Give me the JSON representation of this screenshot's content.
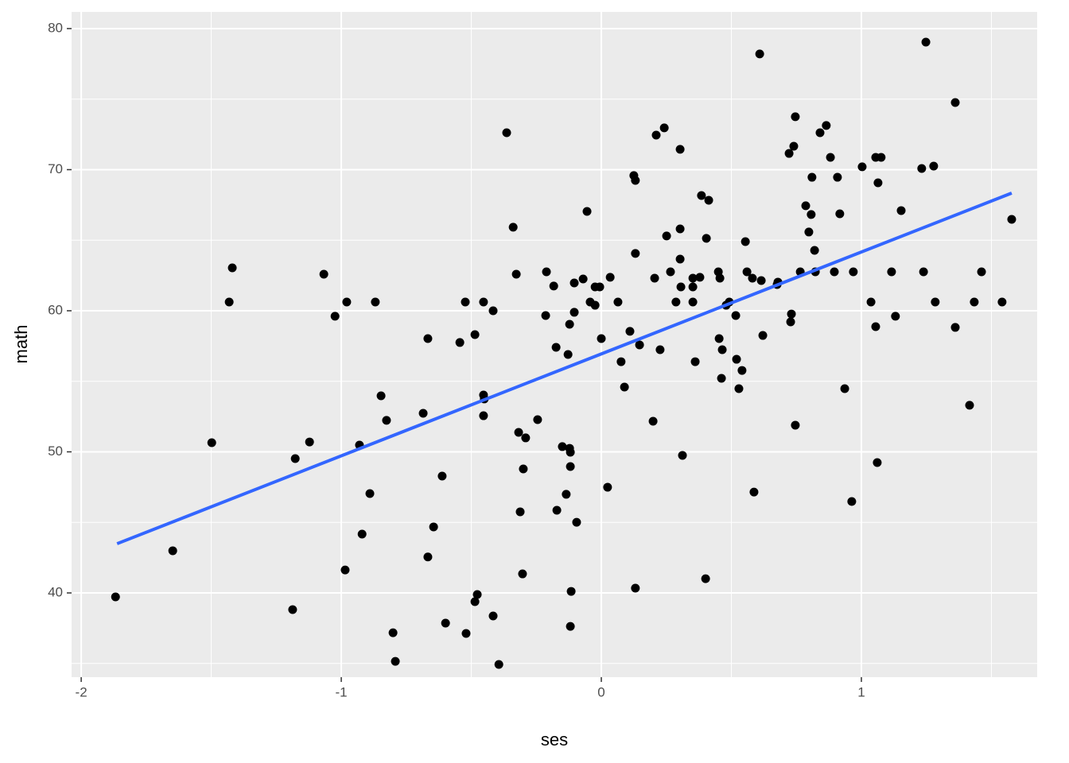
{
  "chart_data": {
    "type": "scatter",
    "x_label": "ses",
    "y_label": "math",
    "xlim": [
      -2.037,
      1.676
    ],
    "ylim": [
      34.03,
      81.18
    ],
    "xticks": [
      -2,
      -1,
      0,
      1
    ],
    "yticks": [
      40,
      50,
      60,
      70,
      80
    ],
    "x_minor_ticks": [
      -1.5,
      -0.5,
      0.5,
      1.5
    ],
    "y_minor_ticks": [
      35,
      45,
      55,
      65,
      75
    ],
    "grid": true,
    "color": "#000000",
    "x": [
      -1.868,
      -1.648,
      -1.498,
      -1.431,
      -1.419,
      -1.187,
      -1.177,
      -1.122,
      -1.067,
      -1.024,
      -0.985,
      -0.979,
      -0.93,
      -0.92,
      -0.89,
      -0.869,
      -0.847,
      -0.826,
      -0.801,
      -0.792,
      -0.685,
      -0.667,
      -0.667,
      -0.645,
      -0.612,
      -0.599,
      -0.544,
      -0.523,
      -0.52,
      -0.486,
      -0.486,
      -0.477,
      -0.453,
      -0.453,
      -0.45,
      -0.453,
      -0.416,
      -0.416,
      -0.394,
      -0.364,
      -0.339,
      -0.327,
      -0.318,
      -0.312,
      -0.303,
      -0.3,
      -0.291,
      -0.245,
      -0.214,
      -0.211,
      -0.183,
      -0.174,
      -0.171,
      -0.15,
      -0.135,
      -0.128,
      -0.122,
      -0.122,
      -0.119,
      -0.119,
      -0.116,
      -0.119,
      -0.104,
      -0.104,
      -0.095,
      -0.07,
      -0.055,
      -0.043,
      -0.024,
      -0.024,
      -0.006,
      0.0,
      0.024,
      0.034,
      0.064,
      0.076,
      0.089,
      0.11,
      0.125,
      0.131,
      0.131,
      0.131,
      0.147,
      0.199,
      0.205,
      0.211,
      0.226,
      0.242,
      0.251,
      0.266,
      0.287,
      0.303,
      0.303,
      0.303,
      0.306,
      0.312,
      0.352,
      0.352,
      0.352,
      0.361,
      0.379,
      0.385,
      0.404,
      0.401,
      0.413,
      0.45,
      0.453,
      0.456,
      0.462,
      0.465,
      0.48,
      0.492,
      0.517,
      0.52,
      0.529,
      0.541,
      0.554,
      0.56,
      0.581,
      0.587,
      0.609,
      0.615,
      0.621,
      0.676,
      0.679,
      0.722,
      0.728,
      0.731,
      0.74,
      0.746,
      0.746,
      0.765,
      0.786,
      0.798,
      0.807,
      0.81,
      0.82,
      0.823,
      0.841,
      0.865,
      0.881,
      0.896,
      0.908,
      0.917,
      0.936,
      0.963,
      0.969,
      1.003,
      1.037,
      1.055,
      1.055,
      1.061,
      1.064,
      1.076,
      1.116,
      1.131,
      1.153,
      1.232,
      1.239,
      1.248,
      1.278,
      1.284,
      1.361,
      1.361,
      1.416,
      1.434,
      1.462,
      1.541,
      1.578
    ],
    "y": [
      39.72,
      42.99,
      50.65,
      60.62,
      63.04,
      38.82,
      49.52,
      50.7,
      62.59,
      59.61,
      41.63,
      60.62,
      50.48,
      44.17,
      47.04,
      60.62,
      53.97,
      52.23,
      37.18,
      35.15,
      52.73,
      58.03,
      42.55,
      44.68,
      48.28,
      37.86,
      57.75,
      60.62,
      37.13,
      58.31,
      39.38,
      39.89,
      60.62,
      54.03,
      53.75,
      52.56,
      60.0,
      38.37,
      34.93,
      72.62,
      65.92,
      62.59,
      51.38,
      45.75,
      41.35,
      48.79,
      50.99,
      52.28,
      59.66,
      62.76,
      61.75,
      57.41,
      45.86,
      50.37,
      46.99,
      56.9,
      59.04,
      50.25,
      49.97,
      48.96,
      40.11,
      37.63,
      59.89,
      61.97,
      45.01,
      62.25,
      67.04,
      60.62,
      61.69,
      60.39,
      61.69,
      58.03,
      47.49,
      62.37,
      60.62,
      56.39,
      54.59,
      58.54,
      69.58,
      69.24,
      64.06,
      40.34,
      57.58,
      52.17,
      62.31,
      72.45,
      57.24,
      72.96,
      65.3,
      62.76,
      60.62,
      65.8,
      63.66,
      71.44,
      61.69,
      49.75,
      60.62,
      61.69,
      62.31,
      56.39,
      62.37,
      68.17,
      65.13,
      41.01,
      67.83,
      62.76,
      58.03,
      62.31,
      55.21,
      57.24,
      60.39,
      60.62,
      59.66,
      56.56,
      54.48,
      55.77,
      64.9,
      62.76,
      62.31,
      47.15,
      78.2,
      62.14,
      58.25,
      61.86,
      62.03,
      71.15,
      59.21,
      59.77,
      71.66,
      73.75,
      51.89,
      62.76,
      67.44,
      65.58,
      66.82,
      69.46,
      64.28,
      62.76,
      72.62,
      73.13,
      70.87,
      62.76,
      69.46,
      66.87,
      54.48,
      46.48,
      62.76,
      70.2,
      60.62,
      70.87,
      58.87,
      49.24,
      69.07,
      70.87,
      62.76,
      59.61,
      67.1,
      70.08,
      62.76,
      79.04,
      70.25,
      60.62,
      74.76,
      58.82,
      53.3,
      60.62,
      62.76,
      60.62,
      66.48
    ],
    "fit": {
      "x": [
        -1.862,
        1.578
      ],
      "y": [
        43.49,
        68.34
      ],
      "color": "#3366FF"
    }
  }
}
